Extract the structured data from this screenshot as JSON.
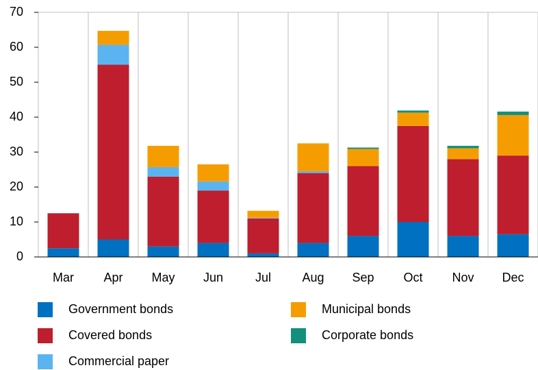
{
  "chart_data": {
    "type": "stacked_bar",
    "categories": [
      "Mar",
      "Apr",
      "May",
      "Jun",
      "Jul",
      "Aug",
      "Sep",
      "Oct",
      "Nov",
      "Dec"
    ],
    "series": [
      {
        "name": "Government bonds",
        "color": "#0070c0",
        "values": [
          2.5,
          5,
          3,
          4,
          1,
          4,
          6,
          10,
          6,
          6.5
        ]
      },
      {
        "name": "Covered bonds",
        "color": "#be1e2d",
        "values": [
          10,
          50,
          20,
          15,
          10,
          20,
          20,
          27.5,
          22,
          22.5
        ]
      },
      {
        "name": "Commercial paper",
        "color": "#5bb4f0",
        "values": [
          0,
          5.7,
          2.7,
          2.6,
          0.2,
          0.5,
          0,
          0,
          0,
          0
        ]
      },
      {
        "name": "Municipal bonds",
        "color": "#f59d00",
        "values": [
          0,
          4,
          6.1,
          4.9,
          2,
          8,
          4.9,
          3.8,
          3.1,
          11.6
        ]
      },
      {
        "name": "Corporate bonds",
        "color": "#12907c",
        "values": [
          0,
          0,
          0,
          0,
          0,
          0,
          0.4,
          0.6,
          0.7,
          1
        ]
      }
    ],
    "ylim": [
      0,
      70
    ],
    "yticks": [
      0,
      10,
      20,
      30,
      40,
      50,
      60,
      70
    ]
  }
}
